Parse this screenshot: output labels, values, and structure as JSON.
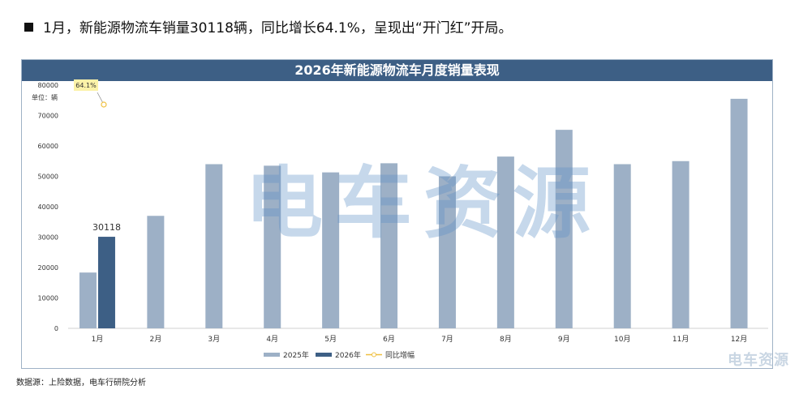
{
  "headline": {
    "text": "1月，新能源物流车销量30118辆，同比增长64.1%，呈现出“开门红”开局。"
  },
  "source": "数据源：上险数据，电车行研院分析",
  "watermark": {
    "main": "电车资源",
    "corner": "电车资源"
  },
  "chart_data": {
    "type": "bar",
    "title": "2026年新能源物流车月度销量表现",
    "unit_label": "单位：辆",
    "categories": [
      "1月",
      "2月",
      "3月",
      "4月",
      "5月",
      "6月",
      "7月",
      "8月",
      "9月",
      "10月",
      "11月",
      "12月"
    ],
    "series": [
      {
        "name": "2025年",
        "values": [
          18350,
          37000,
          54000,
          53500,
          51300,
          54300,
          50000,
          56500,
          65300,
          54000,
          55000,
          75500
        ],
        "color": "#9db0c6"
      },
      {
        "name": "2026年",
        "values": [
          30118,
          null,
          null,
          null,
          null,
          null,
          null,
          null,
          null,
          null,
          null,
          null
        ],
        "color": "#3d5f85"
      }
    ],
    "line_series": {
      "name": "同比增幅",
      "values": [
        "64.1%"
      ],
      "color": "#f0c040"
    },
    "data_labels": {
      "bar": "30118",
      "line": "64.1%"
    },
    "ylim": [
      0,
      80000
    ],
    "yticks": [
      0,
      10000,
      20000,
      30000,
      40000,
      50000,
      60000,
      70000,
      80000
    ],
    "legend_position": "bottom",
    "grid": false
  }
}
